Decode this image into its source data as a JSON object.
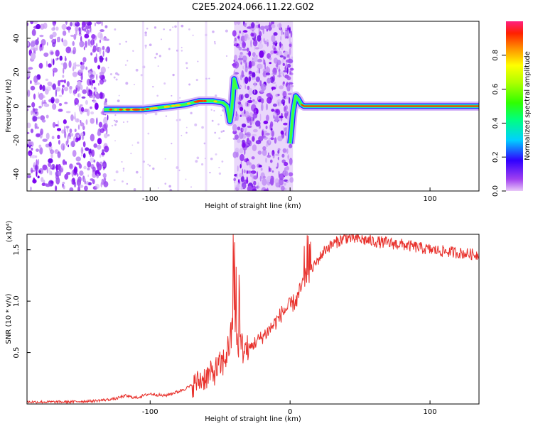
{
  "title": "C2E5.2024.066.11.22.G02",
  "chart_data": [
    {
      "type": "heatmap",
      "xlabel": "Height of straight line (km)",
      "ylabel": "Frequency (Hz)",
      "xlim": [
        -188,
        135
      ],
      "ylim": [
        -50,
        50
      ],
      "xticks": [
        -100,
        0,
        100
      ],
      "yticks": [
        -40,
        -20,
        0,
        20,
        40
      ],
      "ridge": {
        "x": [
          -133,
          -125,
          -115,
          -105,
          -95,
          -85,
          -75,
          -65,
          -55,
          -48,
          -45,
          -44,
          -43,
          -42,
          -41,
          -40,
          -38,
          0,
          1,
          2,
          4,
          6,
          8,
          10,
          14,
          20,
          30,
          60,
          100,
          135
        ],
        "y": [
          -2,
          -2,
          -2,
          -2,
          -1,
          0,
          1,
          3,
          3,
          2,
          0,
          -4,
          -9,
          -4,
          4,
          16,
          10,
          -22,
          -14,
          -4,
          6,
          4,
          1,
          0,
          0,
          0,
          0,
          0,
          0,
          0
        ]
      },
      "colorbar": {
        "label": "Normalized spectral amplitude",
        "range": [
          0,
          1
        ],
        "ticks": [
          0.0,
          0.2,
          0.4,
          0.6,
          0.8
        ]
      }
    },
    {
      "type": "line",
      "xlabel": "Height of straight line (km)",
      "ylabel": "SNR (10 * v/v)",
      "y_multiplier": "(x10⁴)",
      "xlim": [
        -188,
        135
      ],
      "ylim": [
        0,
        1.65
      ],
      "xticks": [
        -100,
        0,
        100
      ],
      "yticks": [
        0.5,
        1.0,
        1.5
      ],
      "color": "#e8312c",
      "x": [
        -188,
        -160,
        -140,
        -125,
        -118,
        -110,
        -100,
        -90,
        -80,
        -70,
        -62,
        -55,
        -48,
        -45,
        -42,
        -40,
        -38,
        -35,
        -30,
        -25,
        -20,
        -15,
        -10,
        -5,
        0,
        5,
        10,
        15,
        20,
        25,
        30,
        40,
        50,
        60,
        80,
        100,
        120,
        135
      ],
      "y": [
        0.02,
        0.02,
        0.03,
        0.05,
        0.08,
        0.06,
        0.1,
        0.08,
        0.12,
        0.18,
        0.25,
        0.3,
        0.4,
        0.5,
        0.65,
        0.85,
        0.6,
        0.55,
        0.52,
        0.6,
        0.65,
        0.72,
        0.8,
        0.9,
        0.95,
        1.02,
        1.2,
        1.3,
        1.4,
        1.5,
        1.55,
        1.62,
        1.6,
        1.58,
        1.55,
        1.5,
        1.47,
        1.45
      ]
    }
  ]
}
